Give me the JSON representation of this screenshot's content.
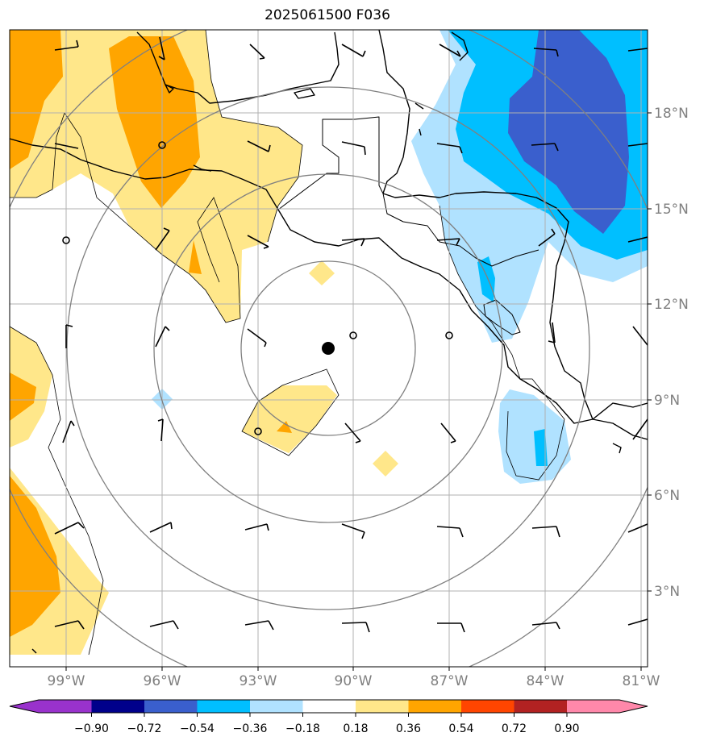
{
  "title": "2025061500 F036",
  "longitude_labels": [
    "99°W",
    "96°W",
    "93°W",
    "90°W",
    "87°W",
    "84°W",
    "81°W"
  ],
  "latitude_labels": [
    "18°N",
    "15°N",
    "12°N",
    "9°N",
    "6°N",
    "3°N"
  ],
  "colorbar": {
    "ticks": [
      "−0.90",
      "−0.72",
      "−0.54",
      "−0.36",
      "−0.18",
      "0.18",
      "0.36",
      "0.54",
      "0.72",
      "0.90"
    ],
    "colors": [
      "#9932cc",
      "#00008b",
      "#3a5fcd",
      "#00bfff",
      "#b0e2ff",
      "#ffffff",
      "#ffe78a",
      "#ffa500",
      "#ff4500",
      "#b22222",
      "#ff88aa"
    ]
  },
  "colors": {
    "grid": "#b0b0b0",
    "range_rings": "#808080",
    "coastline": "#000000"
  },
  "storm_center_marker": "filled-circle"
}
